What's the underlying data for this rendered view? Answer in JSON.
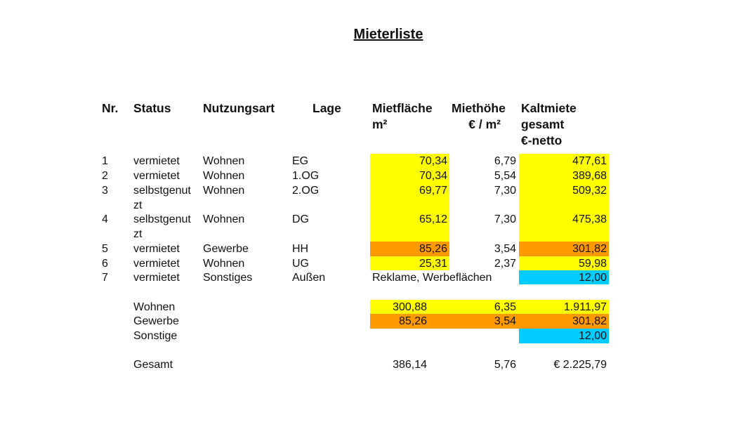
{
  "title": "Mieterliste",
  "headers": {
    "nr": "Nr.",
    "status": "Status",
    "nutzungsart": "Nutzungsart",
    "lage": "Lage",
    "mietflaeche": [
      "Mietfläche",
      "m²"
    ],
    "miethoehe": [
      "Miethöhe",
      "€ / m²"
    ],
    "kaltmiete": [
      "Kaltmiete",
      "gesamt",
      "€-netto"
    ]
  },
  "colors": {
    "wohnen": "#ffff00",
    "gewerbe": "#ff9900",
    "sonstige": "#00ccff"
  },
  "rows": [
    {
      "nr": "1",
      "status": "vermietet",
      "nutzung": "Wohnen",
      "lage": "EG",
      "flaeche": "70,34",
      "hoehe": "6,79",
      "miete": "477,61",
      "cat": "wohnen"
    },
    {
      "nr": "2",
      "status": "vermietet",
      "nutzung": "Wohnen",
      "lage": "1.OG",
      "flaeche": "70,34",
      "hoehe": "5,54",
      "miete": "389,68",
      "cat": "wohnen"
    },
    {
      "nr": "3",
      "status": "selbstgenut",
      "status2": "zt",
      "nutzung": "Wohnen",
      "lage": "2.OG",
      "flaeche": "69,77",
      "hoehe": "7,30",
      "miete": "509,32",
      "cat": "wohnen"
    },
    {
      "nr": "4",
      "status": "selbstgenut",
      "status2": "zt",
      "nutzung": "Wohnen",
      "lage": "DG",
      "flaeche": "65,12",
      "hoehe": "7,30",
      "miete": "475,38",
      "cat": "wohnen"
    },
    {
      "nr": "5",
      "status": "vermietet",
      "nutzung": "Gewerbe",
      "lage": "HH",
      "flaeche": "85,26",
      "hoehe": "3,54",
      "miete": "301,82",
      "cat": "gewerbe"
    },
    {
      "nr": "6",
      "status": "vermietet",
      "nutzung": "Wohnen",
      "lage": "UG",
      "flaeche": "25,31",
      "hoehe": "2,37",
      "miete": "59,98",
      "cat": "wohnen"
    },
    {
      "nr": "7",
      "status": "vermietet",
      "nutzung": "Sonstiges",
      "lage": "Außen",
      "note": "Reklame, Werbeflächen",
      "miete": "12,00",
      "cat": "sonstige"
    }
  ],
  "summary": [
    {
      "label": "Wohnen",
      "flaeche": "300,88",
      "hoehe": "6,35",
      "miete": "1.911,97",
      "cat": "wohnen"
    },
    {
      "label": "Gewerbe",
      "flaeche": "85,26",
      "hoehe": "3,54",
      "miete": "301,82",
      "cat": "gewerbe"
    },
    {
      "label": "Sonstige",
      "miete": "12,00",
      "cat": "sonstige"
    }
  ],
  "total": {
    "label": "Gesamt",
    "flaeche": "386,14",
    "hoehe": "5,76",
    "miete": "€ 2.225,79"
  }
}
